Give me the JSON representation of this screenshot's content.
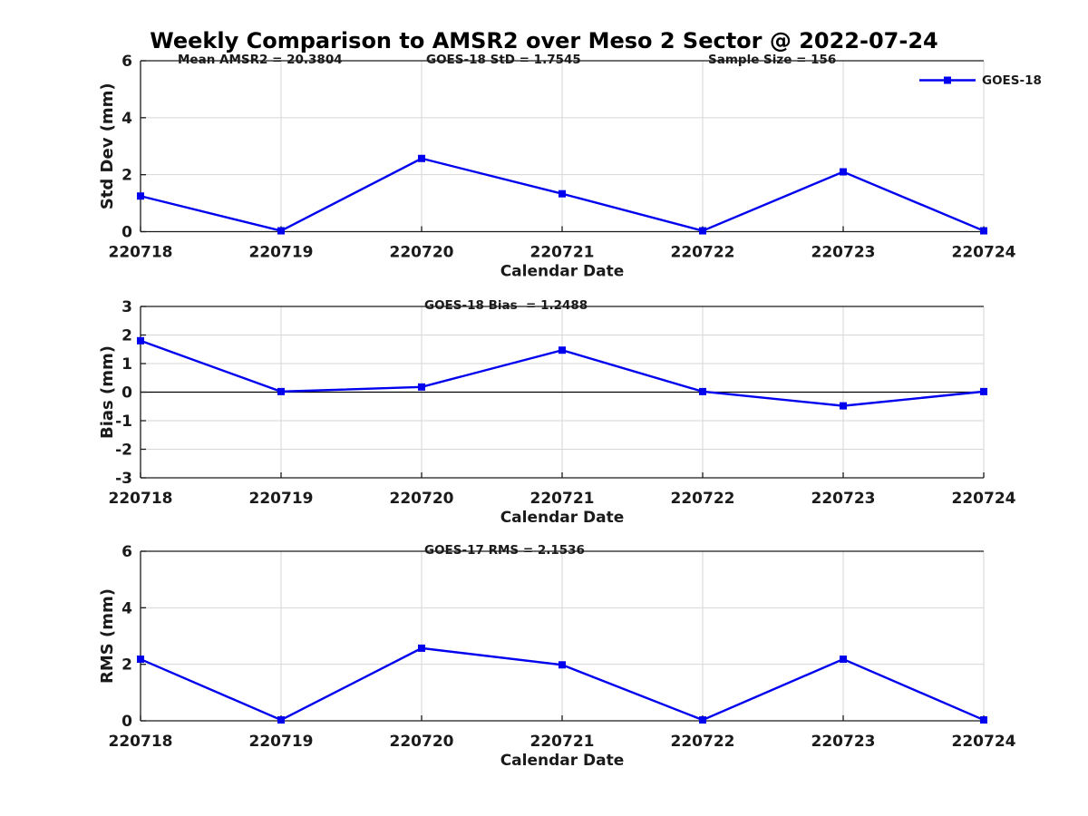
{
  "page": {
    "title": "Weekly Comparison to AMSR2 over Meso 2 Sector @ 2022-07-24",
    "background": "#ffffff"
  },
  "legend": {
    "label": "GOES-18",
    "line_color": "#0000ee",
    "marker": "square"
  },
  "colors": {
    "line": "#0000ee",
    "grid": "#d6d6d6",
    "frame": "#1a1a1a",
    "text": "#1a1a1a"
  },
  "chart_data": [
    {
      "type": "line",
      "subplot": "std-dev",
      "annotations": [
        "Mean AMSR2 = 20.3804",
        "GOES-18 StD = 1.7545",
        "Sample Size = 156"
      ],
      "x": [
        "220718",
        "220719",
        "220720",
        "220721",
        "220722",
        "220723",
        "220724"
      ],
      "xlabel": "Calendar Date",
      "ylabel": "Std Dev (mm)",
      "ylim": [
        0,
        6
      ],
      "yticks": [
        0,
        2,
        4,
        6
      ],
      "grid": true,
      "zero_line": false,
      "legend_position": "top-right-outside",
      "series": [
        {
          "name": "GOES-18",
          "color": "#0000ee",
          "marker": "square",
          "values": [
            1.25,
            0.03,
            2.57,
            1.33,
            0.03,
            2.1,
            0.03
          ]
        }
      ]
    },
    {
      "type": "line",
      "subplot": "bias",
      "annotations": [
        "GOES-18 Bias  = 1.2488"
      ],
      "x": [
        "220718",
        "220719",
        "220720",
        "220721",
        "220722",
        "220723",
        "220724"
      ],
      "xlabel": "Calendar Date",
      "ylabel": "Bias (mm)",
      "ylim": [
        -3,
        3
      ],
      "yticks": [
        -3,
        -2,
        -1,
        0,
        1,
        2,
        3
      ],
      "grid": true,
      "zero_line": true,
      "series": [
        {
          "name": "GOES-18",
          "color": "#0000ee",
          "marker": "square",
          "values": [
            1.8,
            0.02,
            0.18,
            1.47,
            0.02,
            -0.48,
            0.02
          ]
        }
      ]
    },
    {
      "type": "line",
      "subplot": "rms",
      "annotations": [
        "GOES-17 RMS = 2.1536"
      ],
      "x": [
        "220718",
        "220719",
        "220720",
        "220721",
        "220722",
        "220723",
        "220724"
      ],
      "xlabel": "Calendar Date",
      "ylabel": "RMS (mm)",
      "ylim": [
        0,
        6
      ],
      "yticks": [
        0,
        2,
        4,
        6
      ],
      "grid": true,
      "zero_line": false,
      "series": [
        {
          "name": "GOES-17",
          "color": "#0000ee",
          "marker": "square",
          "values": [
            2.18,
            0.03,
            2.57,
            1.98,
            0.03,
            2.18,
            0.03
          ]
        }
      ]
    }
  ]
}
